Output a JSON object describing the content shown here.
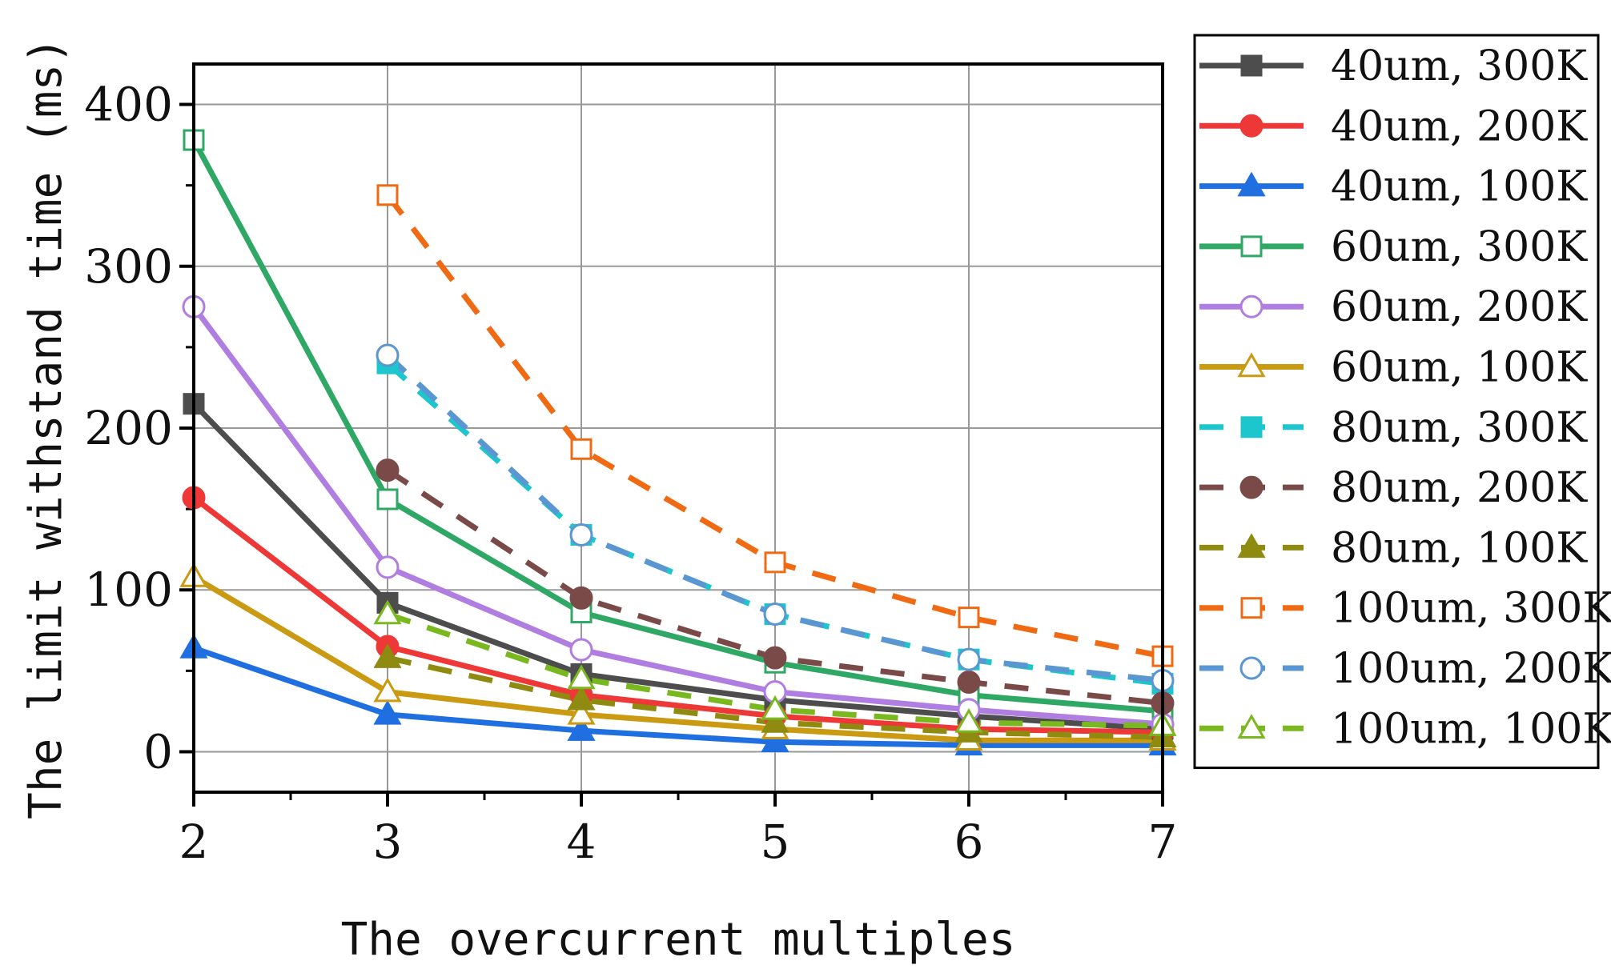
{
  "chart_data": {
    "type": "line",
    "title": "",
    "xlabel": "The overcurrent multiples",
    "ylabel": "The limit withstand time (ms)",
    "x": [
      2,
      3,
      4,
      5,
      6,
      7
    ],
    "xlim": [
      2,
      7
    ],
    "ylim": [
      -25,
      425
    ],
    "xticks": [
      "2",
      "3",
      "4",
      "5",
      "6",
      "7"
    ],
    "yticks": [
      "0",
      "100",
      "200",
      "300",
      "400"
    ],
    "grid": true,
    "legend_position": "right",
    "series": [
      {
        "name": "40um, 300K",
        "color": "#4d4d4d",
        "dash": false,
        "marker": "square",
        "filled": true,
        "values": [
          215,
          92,
          48,
          32,
          22,
          14
        ]
      },
      {
        "name": "40um, 200K",
        "color": "#ee3838",
        "dash": false,
        "marker": "circle",
        "filled": true,
        "values": [
          157,
          65,
          35,
          22,
          14,
          12
        ]
      },
      {
        "name": "40um, 100K",
        "color": "#1f6fe0",
        "dash": false,
        "marker": "triangle",
        "filled": true,
        "values": [
          64,
          23,
          13,
          6,
          4,
          4
        ]
      },
      {
        "name": "60um, 300K",
        "color": "#2fa866",
        "dash": false,
        "marker": "square",
        "filled": false,
        "values": [
          378,
          156,
          86,
          55,
          35,
          25
        ]
      },
      {
        "name": "60um, 200K",
        "color": "#b07ee0",
        "dash": false,
        "marker": "circle",
        "filled": false,
        "values": [
          275,
          114,
          63,
          37,
          26,
          17
        ]
      },
      {
        "name": "60um, 100K",
        "color": "#c99a12",
        "dash": false,
        "marker": "triangle",
        "filled": false,
        "values": [
          108,
          37,
          23,
          14,
          7,
          7
        ]
      },
      {
        "name": "80um, 300K",
        "color": "#1cc6cc",
        "dash": true,
        "marker": "square",
        "filled": true,
        "values": [
          null,
          240,
          134,
          85,
          57,
          42
        ]
      },
      {
        "name": "80um, 200K",
        "color": "#7a4a48",
        "dash": true,
        "marker": "circle",
        "filled": true,
        "values": [
          null,
          174,
          95,
          58,
          43,
          30
        ]
      },
      {
        "name": "80um, 100K",
        "color": "#8f8a10",
        "dash": true,
        "marker": "triangle",
        "filled": true,
        "values": [
          null,
          58,
          32,
          18,
          12,
          9
        ]
      },
      {
        "name": "100um, 300K",
        "color": "#f06a14",
        "dash": true,
        "marker": "square",
        "filled": false,
        "values": [
          null,
          344,
          187,
          117,
          83,
          59
        ]
      },
      {
        "name": "100um, 200K",
        "color": "#5a96d2",
        "dash": true,
        "marker": "circle",
        "filled": false,
        "values": [
          null,
          245,
          134,
          85,
          57,
          44
        ]
      },
      {
        "name": "100um, 100K",
        "color": "#7ab820",
        "dash": true,
        "marker": "triangle",
        "filled": false,
        "values": [
          null,
          85,
          45,
          26,
          18,
          16
        ]
      }
    ]
  }
}
